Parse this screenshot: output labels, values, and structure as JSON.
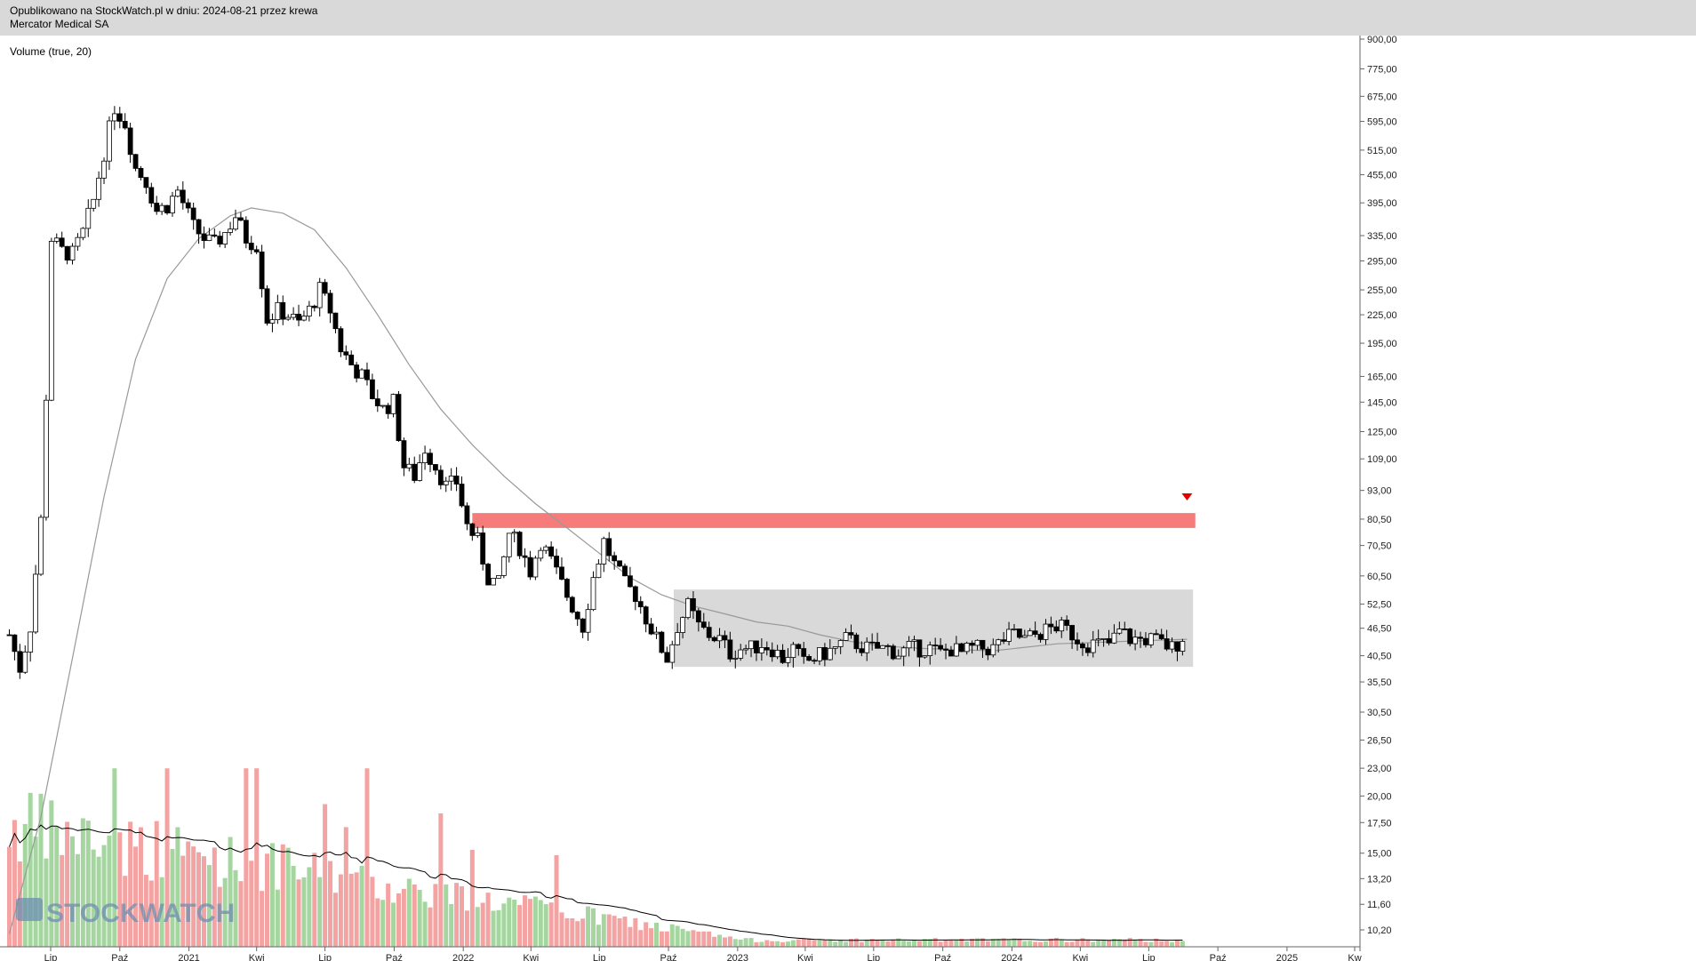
{
  "header": {
    "published": "Opublikowano na StockWatch.pl w dniu: 2024-08-21 przez krewa",
    "instrument": "Mercator Medical SA"
  },
  "indicator_label": "Volume (true, 20)",
  "watermark": "STOCKWATCH",
  "chart_data": {
    "type": "candlestick",
    "price_axis": {
      "scale": "log",
      "ticks": [
        "900,00",
        "775,00",
        "675,00",
        "595,00",
        "515,00",
        "455,00",
        "395,00",
        "335,00",
        "295,00",
        "255,00",
        "225,00",
        "195,00",
        "165,00",
        "145,00",
        "125,00",
        "109,00",
        "93,00",
        "80,50",
        "70,50",
        "60,50",
        "52,50",
        "46,50",
        "40,50",
        "35,50",
        "30,50",
        "26,50",
        "23,00",
        "20,00",
        "17,50",
        "15,00",
        "13,20",
        "11,60",
        "10,20"
      ]
    },
    "time_axis": {
      "ticks": [
        "Lip",
        "Paź",
        "2021",
        "Kwi",
        "Lip",
        "Paź",
        "2022",
        "Kwi",
        "Lip",
        "Paź",
        "2023",
        "Kwi",
        "Lip",
        "Paź",
        "2024",
        "Kwi",
        "Lip",
        "Paź",
        "2025",
        "Kw"
      ],
      "tick_dates": [
        "2020-07-01",
        "2020-10-01",
        "2021-01-01",
        "2021-04-01",
        "2021-07-01",
        "2021-10-01",
        "2022-01-01",
        "2022-04-01",
        "2022-07-01",
        "2022-10-01",
        "2023-01-01",
        "2023-04-01",
        "2023-07-01",
        "2023-10-01",
        "2024-01-01",
        "2024-04-01",
        "2024-07-01",
        "2024-10-01",
        "2025-01-01",
        "2025-04-01"
      ]
    },
    "close_path": [
      [
        "2020-05-07",
        45
      ],
      [
        "2020-05-21",
        38
      ],
      [
        "2020-06-04",
        47
      ],
      [
        "2020-06-18",
        80
      ],
      [
        "2020-06-25",
        150
      ],
      [
        "2020-07-02",
        330
      ],
      [
        "2020-07-16",
        310
      ],
      [
        "2020-07-30",
        305
      ],
      [
        "2020-08-13",
        340
      ],
      [
        "2020-08-27",
        400
      ],
      [
        "2020-09-10",
        510
      ],
      [
        "2020-09-24",
        640
      ],
      [
        "2020-10-08",
        590
      ],
      [
        "2020-10-22",
        470
      ],
      [
        "2020-11-05",
        440
      ],
      [
        "2020-11-19",
        380
      ],
      [
        "2020-12-03",
        390
      ],
      [
        "2020-12-17",
        420
      ],
      [
        "2021-01-07",
        350
      ],
      [
        "2021-01-21",
        330
      ],
      [
        "2021-02-04",
        320
      ],
      [
        "2021-02-18",
        340
      ],
      [
        "2021-03-04",
        370
      ],
      [
        "2021-03-18",
        330
      ],
      [
        "2021-04-01",
        320
      ],
      [
        "2021-04-15",
        220
      ],
      [
        "2021-04-29",
        230
      ],
      [
        "2021-05-13",
        225
      ],
      [
        "2021-05-27",
        215
      ],
      [
        "2021-06-10",
        230
      ],
      [
        "2021-06-24",
        255
      ],
      [
        "2021-07-08",
        230
      ],
      [
        "2021-07-22",
        190
      ],
      [
        "2021-08-05",
        175
      ],
      [
        "2021-08-19",
        165
      ],
      [
        "2021-09-02",
        150
      ],
      [
        "2021-09-16",
        140
      ],
      [
        "2021-09-30",
        145
      ],
      [
        "2021-10-14",
        105
      ],
      [
        "2021-10-28",
        100
      ],
      [
        "2021-11-11",
        115
      ],
      [
        "2021-11-25",
        105
      ],
      [
        "2021-12-09",
        95
      ],
      [
        "2021-12-23",
        97
      ],
      [
        "2022-01-06",
        78
      ],
      [
        "2022-01-20",
        72
      ],
      [
        "2022-02-03",
        60
      ],
      [
        "2022-02-17",
        58
      ],
      [
        "2022-03-03",
        75
      ],
      [
        "2022-03-17",
        70
      ],
      [
        "2022-03-31",
        62
      ],
      [
        "2022-04-14",
        72
      ],
      [
        "2022-04-28",
        65
      ],
      [
        "2022-05-12",
        58
      ],
      [
        "2022-05-26",
        52
      ],
      [
        "2022-06-09",
        47
      ],
      [
        "2022-06-23",
        60
      ],
      [
        "2022-07-07",
        72
      ],
      [
        "2022-07-21",
        64
      ],
      [
        "2022-08-04",
        58
      ],
      [
        "2022-08-18",
        55
      ],
      [
        "2022-09-01",
        49
      ],
      [
        "2022-09-15",
        44
      ],
      [
        "2022-09-29",
        40
      ],
      [
        "2022-10-13",
        47
      ],
      [
        "2022-10-27",
        52
      ],
      [
        "2022-11-10",
        47
      ],
      [
        "2022-11-24",
        45
      ],
      [
        "2022-12-08",
        44
      ],
      [
        "2022-12-22",
        41
      ],
      [
        "2023-01-05",
        42
      ],
      [
        "2023-01-19",
        42
      ],
      [
        "2023-02-02",
        43
      ],
      [
        "2023-02-16",
        42
      ],
      [
        "2023-03-02",
        40
      ],
      [
        "2023-03-16",
        42
      ],
      [
        "2023-03-30",
        39
      ],
      [
        "2023-04-13",
        40
      ],
      [
        "2023-04-27",
        41
      ],
      [
        "2023-05-11",
        42
      ],
      [
        "2023-05-25",
        44
      ],
      [
        "2023-06-08",
        43
      ],
      [
        "2023-06-22",
        42
      ],
      [
        "2023-07-06",
        42
      ],
      [
        "2023-07-20",
        42
      ],
      [
        "2023-08-03",
        41
      ],
      [
        "2023-08-17",
        42
      ],
      [
        "2023-08-31",
        42
      ],
      [
        "2023-09-14",
        42
      ],
      [
        "2023-09-28",
        41
      ],
      [
        "2023-10-12",
        42
      ],
      [
        "2023-10-26",
        41
      ],
      [
        "2023-11-09",
        42
      ],
      [
        "2023-11-23",
        42
      ],
      [
        "2023-12-07",
        42
      ],
      [
        "2023-12-21",
        44
      ],
      [
        "2024-01-04",
        45
      ],
      [
        "2024-01-18",
        44
      ],
      [
        "2024-02-01",
        45
      ],
      [
        "2024-02-15",
        46
      ],
      [
        "2024-03-01",
        47
      ],
      [
        "2024-03-15",
        46
      ],
      [
        "2024-03-29",
        44
      ],
      [
        "2024-04-12",
        43
      ],
      [
        "2024-04-26",
        43
      ],
      [
        "2024-05-10",
        43
      ],
      [
        "2024-05-24",
        46
      ],
      [
        "2024-06-07",
        44
      ],
      [
        "2024-06-21",
        44
      ],
      [
        "2024-07-05",
        44
      ],
      [
        "2024-07-19",
        43
      ],
      [
        "2024-08-02",
        42
      ],
      [
        "2024-08-21",
        46
      ]
    ],
    "moving_average": [
      [
        "2020-05-07",
        10
      ],
      [
        "2020-06-18",
        18
      ],
      [
        "2020-07-30",
        40
      ],
      [
        "2020-09-10",
        90
      ],
      [
        "2020-10-22",
        180
      ],
      [
        "2020-12-03",
        270
      ],
      [
        "2021-01-14",
        330
      ],
      [
        "2021-02-25",
        370
      ],
      [
        "2021-03-25",
        385
      ],
      [
        "2021-05-06",
        375
      ],
      [
        "2021-06-17",
        345
      ],
      [
        "2021-07-29",
        285
      ],
      [
        "2021-09-09",
        225
      ],
      [
        "2021-10-21",
        175
      ],
      [
        "2021-12-02",
        140
      ],
      [
        "2022-01-13",
        117
      ],
      [
        "2022-02-24",
        100
      ],
      [
        "2022-04-07",
        87
      ],
      [
        "2022-05-19",
        77
      ],
      [
        "2022-06-30",
        68
      ],
      [
        "2022-08-11",
        60
      ],
      [
        "2022-09-22",
        55
      ],
      [
        "2022-11-03",
        52
      ],
      [
        "2022-12-15",
        50
      ],
      [
        "2023-01-26",
        48
      ],
      [
        "2023-03-09",
        47
      ],
      [
        "2023-04-20",
        45
      ],
      [
        "2023-06-01",
        43.5
      ],
      [
        "2023-07-13",
        42.5
      ],
      [
        "2023-09-07",
        42
      ],
      [
        "2023-12-07",
        41.5
      ],
      [
        "2024-03-01",
        43
      ],
      [
        "2024-05-24",
        43.5
      ],
      [
        "2024-08-21",
        44
      ]
    ],
    "volume_axis_ticks": [],
    "zones": [
      {
        "label": "resistance",
        "y_low": 77,
        "y_high": 83,
        "from": "2022-01-13",
        "to": "2024-09-01",
        "color": "#f67c7c"
      },
      {
        "label": "range",
        "y_low": 38.3,
        "y_high": 56.5,
        "from": "2022-10-08",
        "to": "2024-08-29",
        "color": "#d9d9d9"
      }
    ],
    "marker": {
      "type": "triangle-down",
      "date": "2024-08-21",
      "y": 90,
      "color": "#e00000"
    },
    "colors": {
      "up": "#ffffff",
      "down": "#000000",
      "vol_up": "#a5d6a0",
      "vol_down": "#f4a3a3",
      "ma": "#999999",
      "vol_ma": "#000000"
    }
  }
}
